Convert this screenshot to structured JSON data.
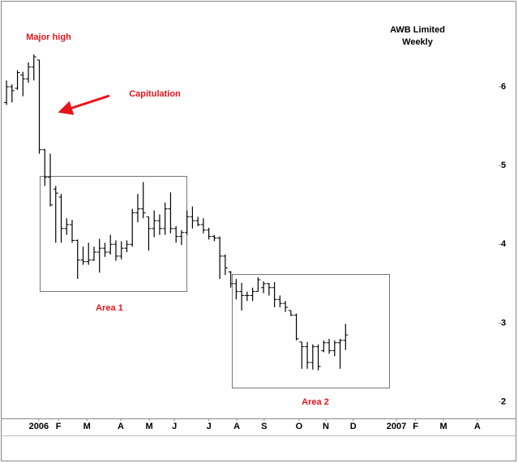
{
  "chart_data": {
    "type": "ohlc",
    "title": "AWB Limited",
    "subtitle": "Weekly",
    "color": "#000000",
    "annotation_color": "#e8141c",
    "annotations": [
      {
        "text": "Major high"
      },
      {
        "text": "Capitulation"
      },
      {
        "text": "Area 1"
      },
      {
        "text": "Area 2"
      }
    ],
    "open": [
      5.8,
      6.0,
      5.98,
      6.15,
      6.1,
      6.25,
      6.34,
      5.2,
      4.85,
      4.7,
      4.6,
      4.2,
      4.25,
      4.05,
      3.8,
      3.78,
      3.8,
      3.9,
      3.95,
      3.9,
      4.0,
      3.85,
      3.95,
      4.0,
      4.4,
      4.45,
      4.35,
      4.2,
      4.3,
      4.2,
      4.45,
      4.2,
      4.1,
      4.15,
      4.35,
      4.3,
      4.25,
      4.18,
      4.1,
      4.08,
      3.85,
      3.65,
      3.5,
      3.4,
      3.35,
      3.35,
      3.4,
      3.45,
      3.5,
      3.45,
      3.3,
      3.25,
      3.16,
      3.1,
      2.76,
      2.7,
      2.5,
      2.7,
      2.65,
      2.75,
      2.65,
      2.75,
      2.78
    ],
    "high": [
      6.08,
      6.03,
      6.21,
      6.19,
      6.31,
      6.41,
      6.34,
      5.21,
      5.15,
      4.74,
      4.64,
      4.33,
      4.31,
      4.06,
      3.97,
      4.02,
      3.97,
      4.07,
      4.02,
      4.12,
      4.05,
      4.04,
      4.05,
      4.45,
      4.64,
      4.79,
      4.35,
      4.43,
      4.38,
      4.53,
      4.66,
      4.23,
      4.18,
      4.43,
      4.48,
      4.35,
      4.33,
      4.21,
      4.12,
      4.1,
      3.87,
      3.66,
      3.56,
      3.51,
      3.4,
      3.45,
      3.58,
      3.53,
      3.51,
      3.52,
      3.35,
      3.28,
      3.16,
      3.12,
      2.76,
      2.76,
      2.73,
      2.73,
      2.78,
      2.8,
      2.78,
      2.8,
      2.99
    ],
    "low": [
      5.77,
      5.8,
      5.96,
      5.88,
      6.05,
      6.08,
      5.15,
      4.74,
      4.48,
      4.02,
      4.02,
      4.12,
      4.02,
      3.56,
      3.74,
      3.74,
      3.79,
      3.64,
      3.84,
      3.87,
      3.79,
      3.81,
      3.9,
      3.97,
      4.28,
      4.33,
      3.92,
      4.09,
      4.12,
      4.12,
      4.14,
      4.02,
      3.99,
      4.12,
      4.2,
      4.23,
      4.14,
      4.06,
      4.04,
      3.56,
      3.61,
      3.45,
      3.3,
      3.16,
      3.28,
      3.28,
      3.4,
      3.38,
      3.35,
      3.2,
      3.2,
      3.14,
      3.09,
      2.78,
      2.42,
      2.42,
      2.41,
      2.4,
      2.63,
      2.61,
      2.58,
      2.42,
      2.66
    ],
    "close": [
      6.0,
      5.95,
      6.18,
      6.1,
      6.25,
      6.38,
      5.2,
      4.85,
      4.5,
      4.65,
      4.2,
      4.25,
      4.05,
      3.8,
      3.78,
      3.8,
      3.9,
      3.95,
      3.9,
      4.0,
      3.85,
      3.95,
      4.0,
      4.4,
      4.45,
      4.4,
      4.2,
      4.3,
      4.2,
      4.45,
      4.2,
      4.1,
      4.15,
      4.35,
      4.3,
      4.25,
      4.18,
      4.1,
      4.08,
      3.85,
      3.7,
      3.5,
      3.4,
      3.35,
      3.35,
      3.4,
      3.55,
      3.5,
      3.45,
      3.3,
      3.25,
      3.2,
      3.1,
      2.8,
      2.7,
      2.5,
      2.7,
      2.45,
      2.75,
      2.65,
      2.75,
      2.78,
      2.85
    ],
    "ylim": [
      1.79,
      7.06
    ],
    "yticks": [
      2,
      3,
      4,
      5,
      6
    ],
    "xlim": [
      -0.6,
      91.9
    ],
    "xticks": [
      {
        "value": 5.9,
        "label": "2006"
      },
      {
        "value": 9.5,
        "label": "F"
      },
      {
        "value": 14.7,
        "label": "M"
      },
      {
        "value": 20.9,
        "label": "A"
      },
      {
        "value": 26.1,
        "label": "M"
      },
      {
        "value": 30.7,
        "label": "J"
      },
      {
        "value": 37.0,
        "label": "J"
      },
      {
        "value": 42.1,
        "label": "A"
      },
      {
        "value": 47.1,
        "label": "S"
      },
      {
        "value": 53.5,
        "label": "O"
      },
      {
        "value": 58.4,
        "label": "N"
      },
      {
        "value": 63.4,
        "label": "D"
      },
      {
        "value": 71.3,
        "label": "2007"
      },
      {
        "value": 74.8,
        "label": "F"
      },
      {
        "value": 79.9,
        "label": "M"
      },
      {
        "value": 86.1,
        "label": "A"
      }
    ]
  }
}
